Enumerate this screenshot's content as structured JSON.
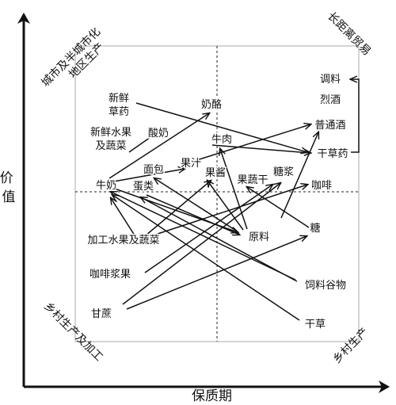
{
  "axes": {
    "x_label": "保质期",
    "y_label": "价值"
  },
  "corners": {
    "top_left": [
      "城市及半城市化",
      "地区生产"
    ],
    "top_right": "长距离贸易",
    "bottom_left": [
      "乡村生产及加工"
    ],
    "bottom_right": "乡村生产"
  },
  "nodes": [
    {
      "id": "xxcy",
      "lines": [
        "新鲜",
        "草药"
      ]
    },
    {
      "id": "xxsg",
      "lines": [
        "新鲜水果",
        "及蔬菜"
      ]
    },
    {
      "id": "suannai",
      "lines": [
        "酸奶"
      ]
    },
    {
      "id": "nailao",
      "lines": [
        "奶酪"
      ]
    },
    {
      "id": "niurou",
      "lines": [
        "牛肉"
      ]
    },
    {
      "id": "guozhi",
      "lines": [
        "果汁"
      ]
    },
    {
      "id": "mianbao",
      "lines": [
        "面包"
      ]
    },
    {
      "id": "guojiang",
      "lines": [
        "果酱"
      ]
    },
    {
      "id": "guoshugan",
      "lines": [
        "果蔬干"
      ]
    },
    {
      "id": "tangjiang",
      "lines": [
        "糖浆"
      ]
    },
    {
      "id": "niunai",
      "lines": [
        "牛奶"
      ]
    },
    {
      "id": "danlei",
      "lines": [
        "蛋类"
      ]
    },
    {
      "id": "kafei",
      "lines": [
        "咖啡"
      ]
    },
    {
      "id": "tiaoliao",
      "lines": [
        "调料"
      ]
    },
    {
      "id": "liejiu",
      "lines": [
        "烈酒"
      ]
    },
    {
      "id": "putongjiu",
      "lines": [
        "普通酒"
      ]
    },
    {
      "id": "gancaoyao",
      "lines": [
        "干草药"
      ]
    },
    {
      "id": "jiagong",
      "lines": [
        "加工水果及蔬菜"
      ]
    },
    {
      "id": "yuanliao",
      "lines": [
        "原料"
      ]
    },
    {
      "id": "tang",
      "lines": [
        "糖"
      ]
    },
    {
      "id": "kfjg",
      "lines": [
        "咖啡浆果"
      ]
    },
    {
      "id": "silao",
      "lines": [
        "饲料谷物"
      ]
    },
    {
      "id": "ganzhe",
      "lines": [
        "甘蔗"
      ]
    },
    {
      "id": "gancao",
      "lines": [
        "干草"
      ]
    }
  ]
}
